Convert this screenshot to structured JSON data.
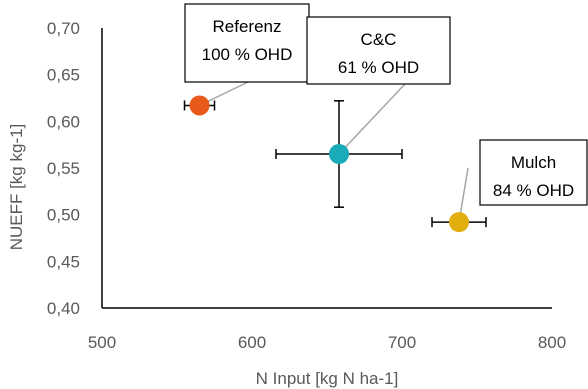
{
  "chart_data": {
    "type": "scatter",
    "xlabel": "N Input [kg N ha-1]",
    "ylabel": "NUEFF [kg kg-1]",
    "xlim": [
      500,
      800
    ],
    "ylim": [
      0.4,
      0.7
    ],
    "x_ticks": [
      {
        "value": 500,
        "label": "500"
      },
      {
        "value": 600,
        "label": "600"
      },
      {
        "value": 700,
        "label": "700"
      },
      {
        "value": 800,
        "label": "800"
      }
    ],
    "y_ticks": [
      {
        "value": 0.4,
        "label": "0,40"
      },
      {
        "value": 0.45,
        "label": "0,45"
      },
      {
        "value": 0.5,
        "label": "0,50"
      },
      {
        "value": 0.55,
        "label": "0,55"
      },
      {
        "value": 0.6,
        "label": "0,60"
      },
      {
        "value": 0.65,
        "label": "0,65"
      },
      {
        "value": 0.7,
        "label": "0,70"
      }
    ],
    "grid": false,
    "points": [
      {
        "name": "Referenz",
        "x": 565,
        "y": 0.617,
        "x_err": 10,
        "y_err": 0.005,
        "color": "#E8591A",
        "label_lines": [
          "Referenz",
          "100 % OHD"
        ]
      },
      {
        "name": "C&C",
        "x": 658,
        "y": 0.565,
        "x_err": 42,
        "y_err": 0.057,
        "color": "#1AABB8",
        "label_lines": [
          "C&C",
          "61 % OHD"
        ]
      },
      {
        "name": "Mulch",
        "x": 738,
        "y": 0.492,
        "x_err": 18,
        "y_err": 0.005,
        "color": "#E2AE0E",
        "label_lines": [
          "Mulch",
          "84 % OHD"
        ]
      }
    ]
  }
}
